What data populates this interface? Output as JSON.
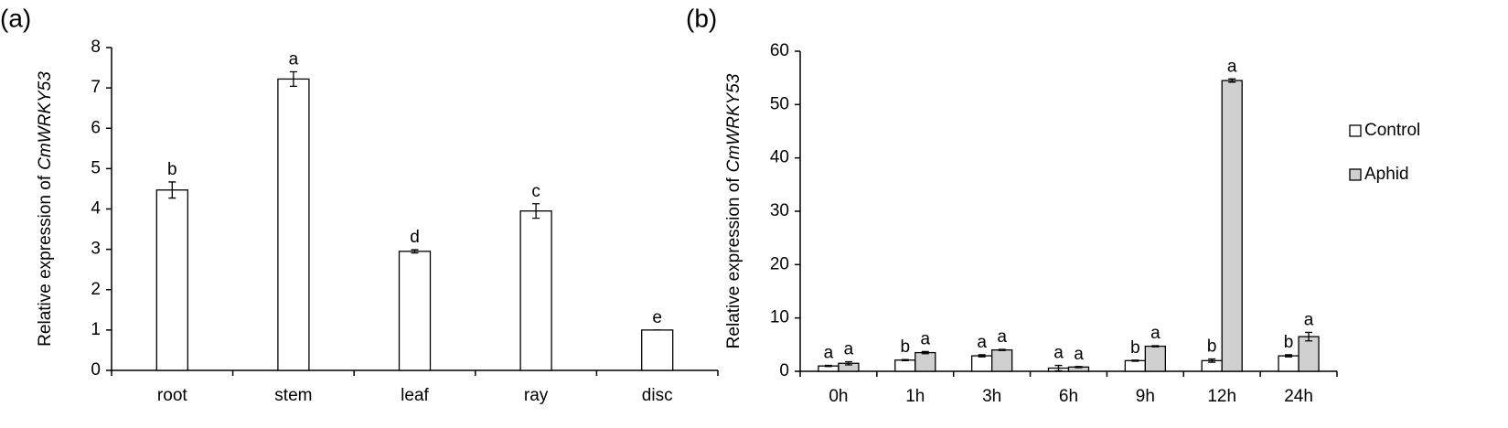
{
  "chart_data": [
    {
      "type": "bar",
      "panel_label": "(a)",
      "ylabel_prefix": "Relative expression of",
      "ylabel_gene": "CmWRKY53",
      "categories": [
        "root",
        "stem",
        "leaf",
        "ray",
        "disc"
      ],
      "series": [
        {
          "color": "#ffffff",
          "values": [
            4.47,
            7.22,
            2.95,
            3.95,
            1.0
          ],
          "errors": [
            0.2,
            0.18,
            0.04,
            0.18,
            0
          ],
          "letters": [
            "b",
            "a",
            "d",
            "c",
            "e"
          ]
        }
      ],
      "ylim": [
        0,
        8
      ],
      "yticks": [
        0,
        1,
        2,
        3,
        4,
        5,
        6,
        7,
        8
      ],
      "grid": false
    },
    {
      "type": "bar",
      "panel_label": "(b)",
      "ylabel_prefix": "Relative expression of",
      "ylabel_gene": "CmWRKY53",
      "categories": [
        "0h",
        "1h",
        "3h",
        "6h",
        "9h",
        "12h",
        "24h"
      ],
      "series": [
        {
          "name": "Control",
          "color": "#ffffff",
          "values": [
            1.0,
            2.1,
            2.9,
            0.6,
            2.0,
            2.0,
            2.9
          ],
          "errors": [
            0.1,
            0.1,
            0.2,
            0.5,
            0.1,
            0.3,
            0.2
          ],
          "letters": [
            "a",
            "b",
            "a",
            "a",
            "b",
            "b",
            "b"
          ]
        },
        {
          "name": "Aphid",
          "color": "#d0d0d0",
          "values": [
            1.5,
            3.5,
            4.0,
            0.8,
            4.7,
            54.5,
            6.5
          ],
          "errors": [
            0.3,
            0.2,
            0.1,
            0.1,
            0.1,
            0.3,
            0.8
          ],
          "letters": [
            "a",
            "a",
            "a",
            "a",
            "a",
            "a",
            "a"
          ]
        }
      ],
      "ylim": [
        0,
        60
      ],
      "yticks": [
        0,
        10,
        20,
        30,
        40,
        50,
        60
      ],
      "grid": false,
      "legend": "right"
    }
  ]
}
